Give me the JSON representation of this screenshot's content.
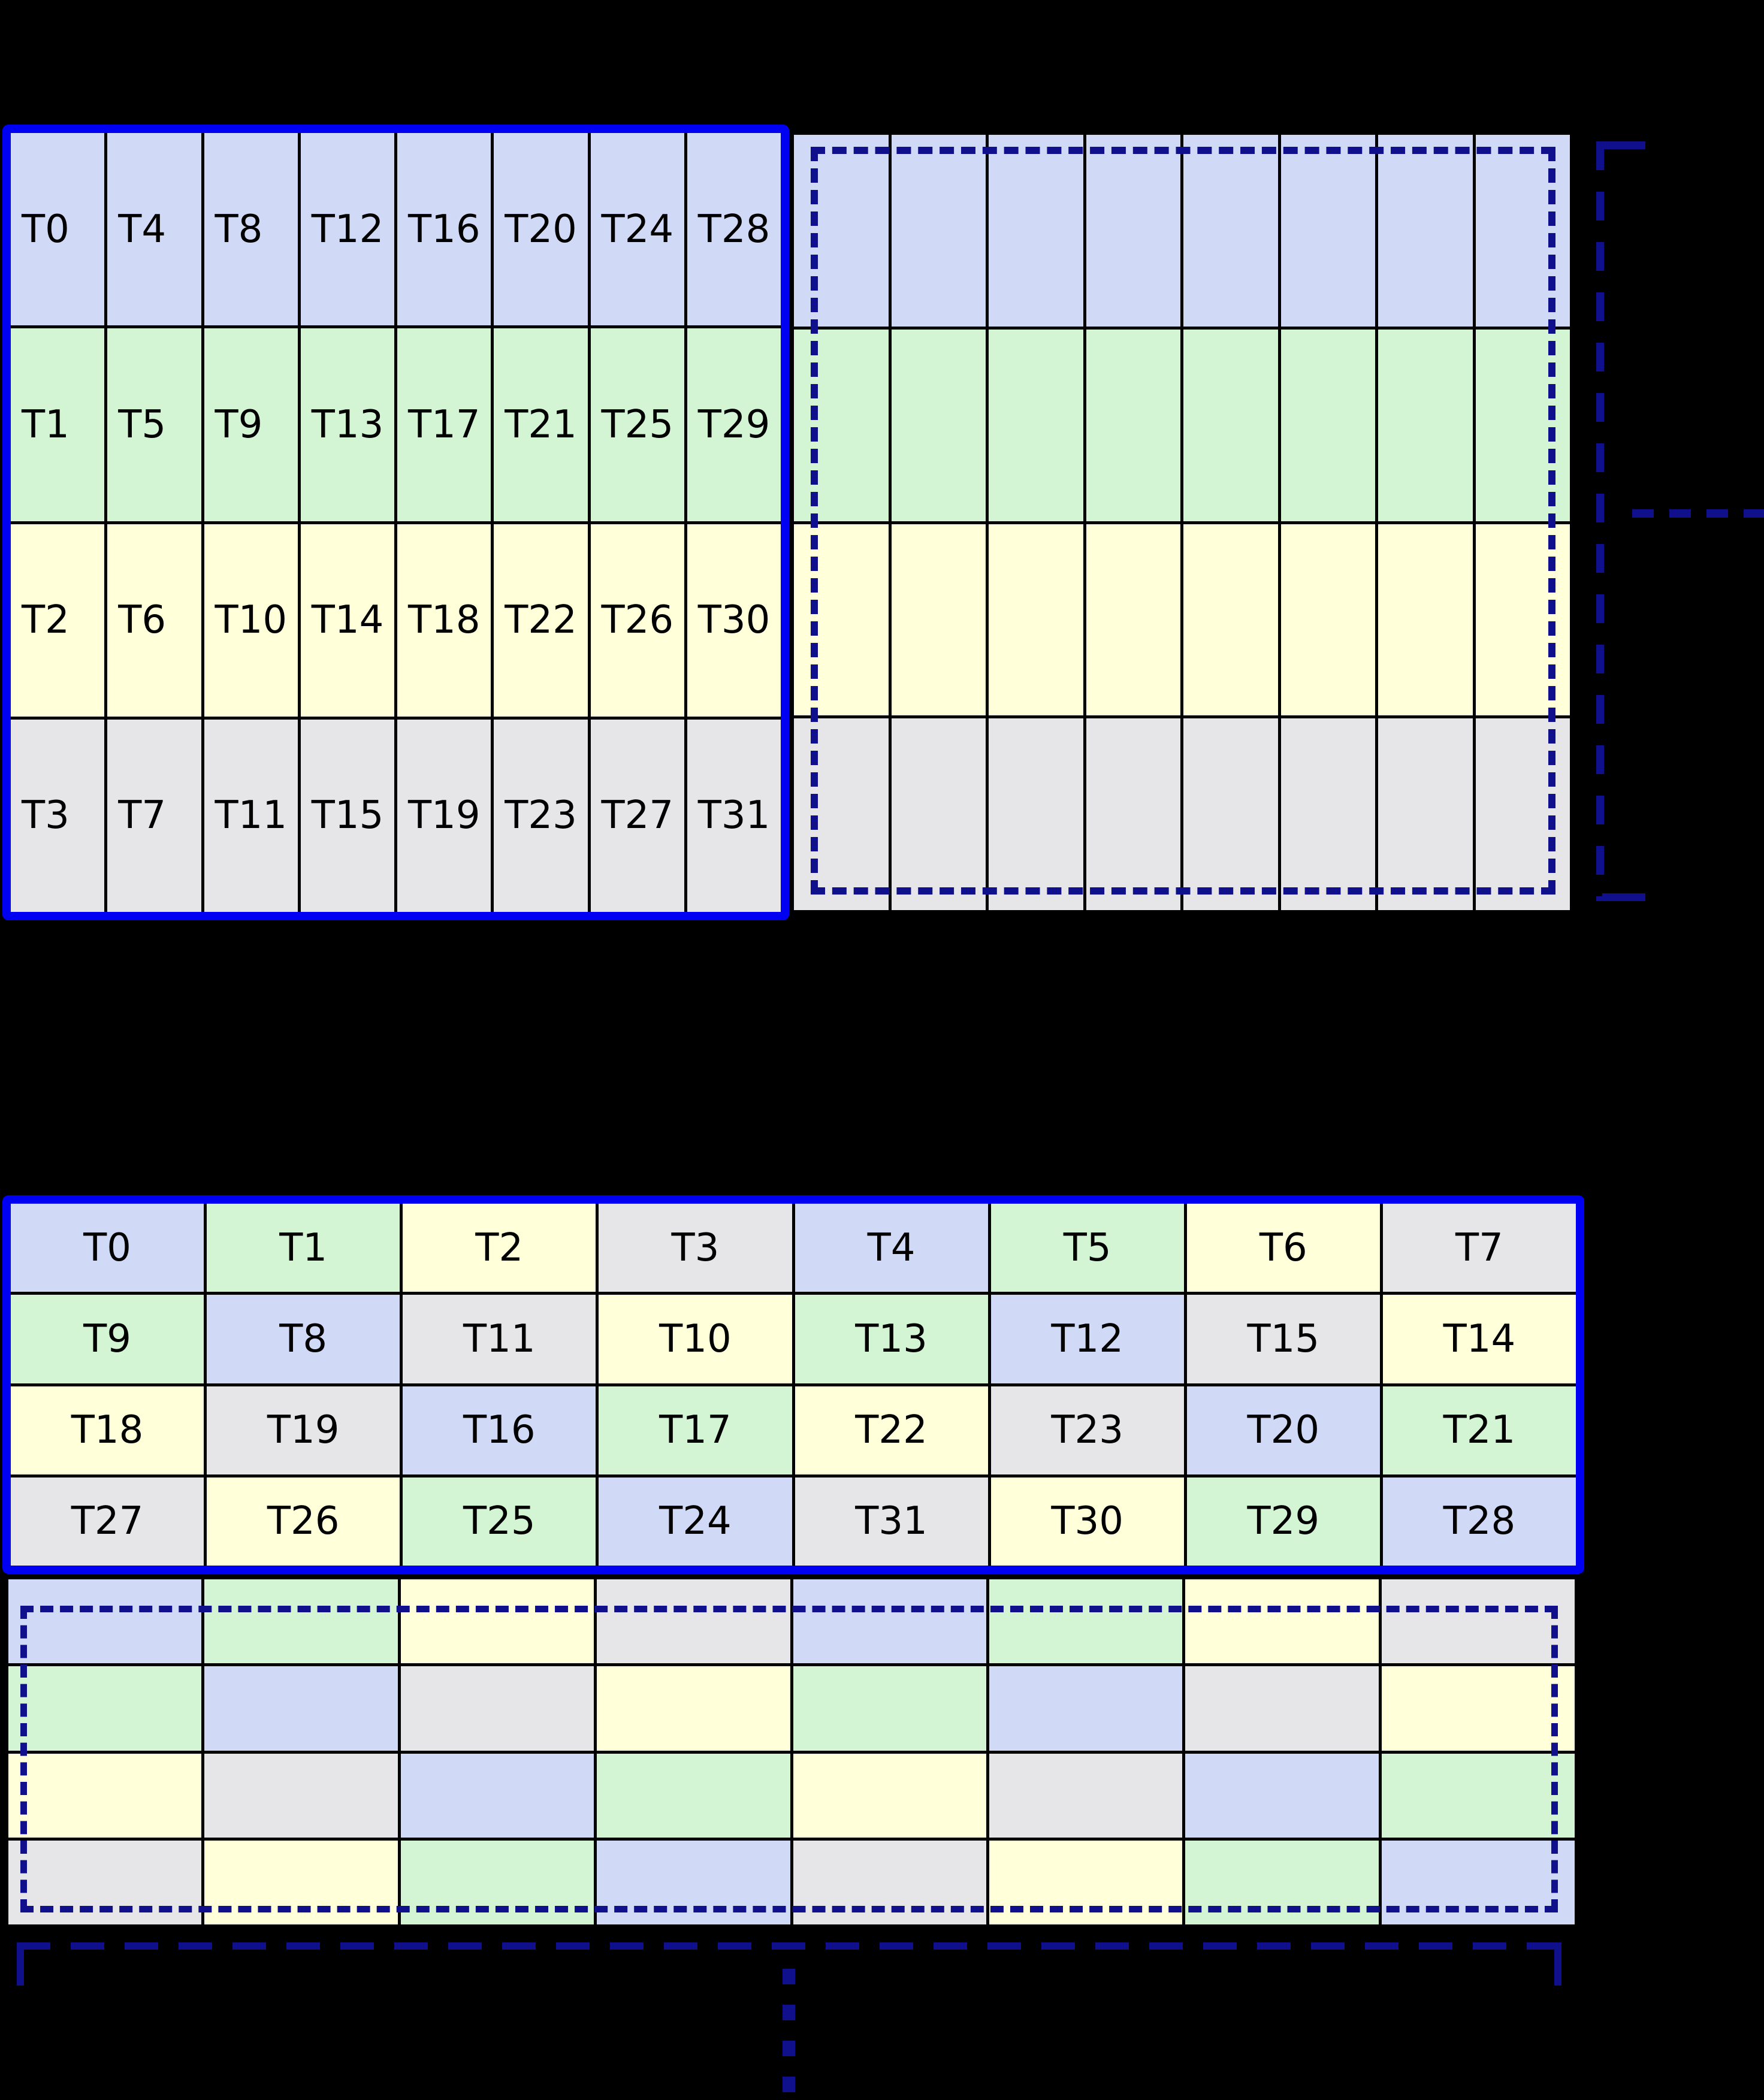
{
  "colors": {
    "background": "#000000",
    "solid_block_border": "#0000f2",
    "dashed_border": "#10108c",
    "grid_line": "#000000",
    "label_text": "#000000",
    "palette": {
      "blue": "#d0d9f6",
      "green": "#d3f5d3",
      "yellow": "#ffffd9",
      "gray": "#e6e6e9"
    }
  },
  "top_diagram": {
    "labeled_block": {
      "columns": 8,
      "rows": [
        {
          "color": "blue",
          "labels": [
            "T0",
            "T4",
            "T8",
            "T12",
            "T16",
            "T20",
            "T24",
            "T28"
          ]
        },
        {
          "color": "green",
          "labels": [
            "T1",
            "T5",
            "T9",
            "T13",
            "T17",
            "T21",
            "T25",
            "T29"
          ]
        },
        {
          "color": "yellow",
          "labels": [
            "T2",
            "T6",
            "T10",
            "T14",
            "T18",
            "T22",
            "T26",
            "T30"
          ]
        },
        {
          "color": "gray",
          "labels": [
            "T3",
            "T7",
            "T11",
            "T15",
            "T19",
            "T23",
            "T27",
            "T31"
          ]
        }
      ]
    },
    "continuation_block": {
      "columns": 8,
      "row_colors": [
        "blue",
        "green",
        "yellow",
        "gray"
      ]
    },
    "icons": {
      "right_bracket": "dashed-square-bracket-icon",
      "continuation_dots": "horizontal-dashed-ellipsis-icon"
    }
  },
  "bottom_diagram": {
    "labeled_block": {
      "columns": 8,
      "rows": [
        {
          "cells": [
            {
              "label": "T0",
              "color": "blue"
            },
            {
              "label": "T1",
              "color": "green"
            },
            {
              "label": "T2",
              "color": "yellow"
            },
            {
              "label": "T3",
              "color": "gray"
            },
            {
              "label": "T4",
              "color": "blue"
            },
            {
              "label": "T5",
              "color": "green"
            },
            {
              "label": "T6",
              "color": "yellow"
            },
            {
              "label": "T7",
              "color": "gray"
            }
          ]
        },
        {
          "cells": [
            {
              "label": "T9",
              "color": "green"
            },
            {
              "label": "T8",
              "color": "blue"
            },
            {
              "label": "T11",
              "color": "gray"
            },
            {
              "label": "T10",
              "color": "yellow"
            },
            {
              "label": "T13",
              "color": "green"
            },
            {
              "label": "T12",
              "color": "blue"
            },
            {
              "label": "T15",
              "color": "gray"
            },
            {
              "label": "T14",
              "color": "yellow"
            }
          ]
        },
        {
          "cells": [
            {
              "label": "T18",
              "color": "yellow"
            },
            {
              "label": "T19",
              "color": "gray"
            },
            {
              "label": "T16",
              "color": "blue"
            },
            {
              "label": "T17",
              "color": "green"
            },
            {
              "label": "T22",
              "color": "yellow"
            },
            {
              "label": "T23",
              "color": "gray"
            },
            {
              "label": "T20",
              "color": "blue"
            },
            {
              "label": "T21",
              "color": "green"
            }
          ]
        },
        {
          "cells": [
            {
              "label": "T27",
              "color": "gray"
            },
            {
              "label": "T26",
              "color": "yellow"
            },
            {
              "label": "T25",
              "color": "green"
            },
            {
              "label": "T24",
              "color": "blue"
            },
            {
              "label": "T31",
              "color": "gray"
            },
            {
              "label": "T30",
              "color": "yellow"
            },
            {
              "label": "T29",
              "color": "green"
            },
            {
              "label": "T28",
              "color": "blue"
            }
          ]
        }
      ]
    },
    "continuation_block": {
      "columns": 8,
      "rows": [
        [
          "blue",
          "green",
          "yellow",
          "gray",
          "blue",
          "green",
          "yellow",
          "gray"
        ],
        [
          "green",
          "blue",
          "gray",
          "yellow",
          "green",
          "blue",
          "gray",
          "yellow"
        ],
        [
          "yellow",
          "gray",
          "blue",
          "green",
          "yellow",
          "gray",
          "blue",
          "green"
        ],
        [
          "gray",
          "yellow",
          "green",
          "blue",
          "gray",
          "yellow",
          "green",
          "blue"
        ]
      ]
    },
    "icons": {
      "bottom_bracket": "dashed-square-bracket-icon",
      "continuation_dots": "vertical-dashed-ellipsis-icon"
    }
  }
}
